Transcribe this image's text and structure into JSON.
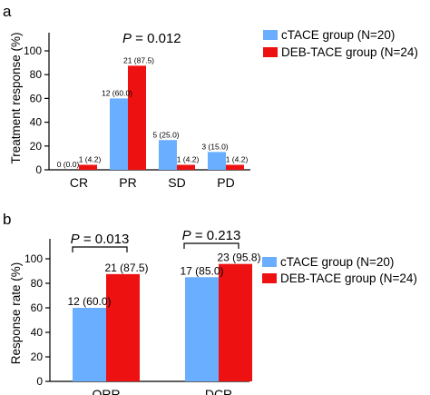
{
  "colors": {
    "ctace": "#6aaeff",
    "deb": "#ee1111"
  },
  "chart_data": [
    {
      "type": "bar",
      "panel": "a",
      "ylabel": "Treatment response (%)",
      "ylim": [
        0,
        100
      ],
      "yticks": [
        "0",
        "20",
        "40",
        "60",
        "80",
        "100"
      ],
      "categories": [
        "CR",
        "PR",
        "SD",
        "PD"
      ],
      "series": [
        {
          "name": "cTACE group (N=20)",
          "values": [
            0,
            60.0,
            25.0,
            15.0
          ],
          "labels": [
            "0 (0.0)",
            "12 (60.0)",
            "5 (25.0)",
            "3 (15.0)"
          ]
        },
        {
          "name": "DEB-TACE group (N=24)",
          "values": [
            4.2,
            87.5,
            4.2,
            4.2
          ],
          "labels": [
            "1 (4.2)",
            "21 (87.5)",
            "1 (4.2)",
            "1 (4.2)"
          ]
        }
      ],
      "annotations": [
        {
          "italic": "P",
          "text": " = 0.012"
        }
      ],
      "legend": "top-right",
      "grid": false
    },
    {
      "type": "bar",
      "panel": "b",
      "ylabel": "Response rate (%)",
      "ylim": [
        0,
        100
      ],
      "yticks": [
        "0",
        "20",
        "40",
        "60",
        "80",
        "100"
      ],
      "categories": [
        "ORR",
        "DCR"
      ],
      "series": [
        {
          "name": "cTACE group (N=20)",
          "values": [
            60.0,
            85.0
          ],
          "labels": [
            "12 (60.0)",
            "17 (85.0)"
          ]
        },
        {
          "name": "DEB-TACE group (N=24)",
          "values": [
            87.5,
            95.8
          ],
          "labels": [
            "21 (87.5)",
            "23 (95.8)"
          ]
        }
      ],
      "annotations": [
        {
          "italic": "P",
          "text": " = 0.013"
        },
        {
          "italic": "P",
          "text": " = 0.213"
        }
      ],
      "legend": "right",
      "grid": false
    }
  ]
}
